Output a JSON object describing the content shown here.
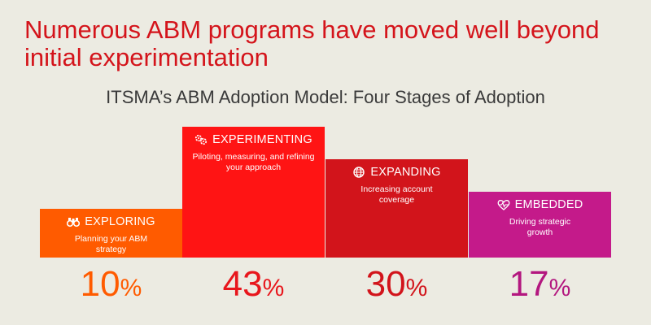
{
  "headline": "Numerous ABM programs have moved well beyond initial experimentation",
  "colors": {
    "background": "#ecebe2",
    "headline": "#d4141b",
    "exploring": "#ff5b00",
    "experimenting": "#ff1414",
    "expanding": "#d2141b",
    "embedded": "#c41a8a"
  },
  "chart_data": {
    "type": "bar",
    "title": "ITSMA’s ABM Adoption Model: Four Stages of Adoption",
    "ylim": [
      0,
      43
    ],
    "value_suffix": "%",
    "categories": [
      "EXPLORING",
      "EXPERIMENTING",
      "EXPANDING",
      "EMBEDDED"
    ],
    "descriptions": [
      "Planning your ABM strategy",
      "Piloting, measuring, and refining your approach",
      "Increasing account coverage",
      "Driving strategic growth"
    ],
    "icons": [
      "binoculars-icon",
      "gears-icon",
      "globe-icon",
      "heartbeat-icon"
    ],
    "values": [
      10,
      43,
      30,
      17
    ],
    "bar_colors": [
      "#ff5b00",
      "#ff1414",
      "#d2141b",
      "#c41a8a"
    ],
    "label_colors": [
      "#ff5b00",
      "#e8161c",
      "#d2141b",
      "#b3177f"
    ]
  }
}
